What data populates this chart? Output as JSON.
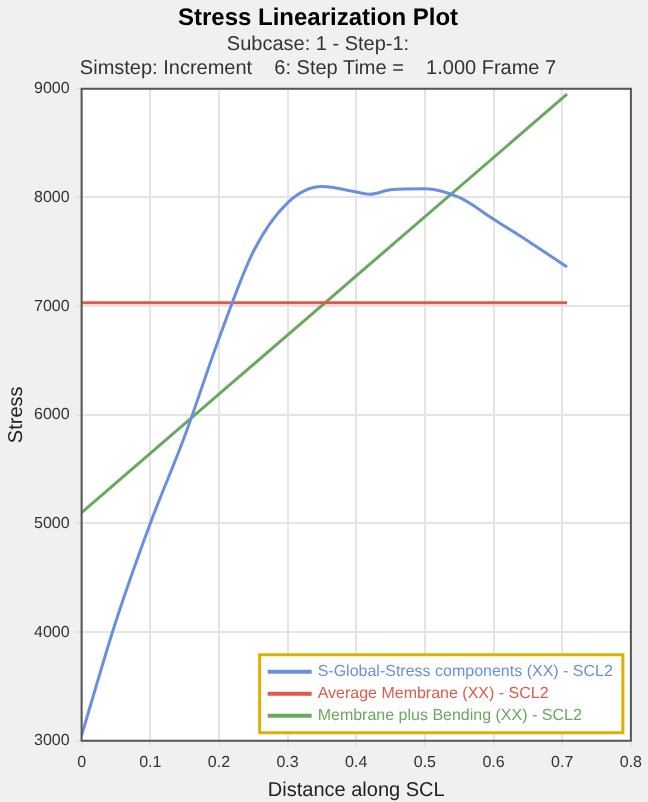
{
  "chart_data": {
    "type": "line",
    "title": "Stress Linearization Plot",
    "subtitle": "Subcase: 1 - Step-1:\nSimstep: Increment    6: Step Time =    1.000 Frame 7",
    "xlabel": "Distance along SCL",
    "ylabel": "Stress",
    "xlim": [
      0,
      0.8
    ],
    "xticks": [
      0,
      0.1,
      0.2,
      0.3,
      0.4,
      0.5,
      0.6,
      0.7,
      0.8
    ],
    "ylim": [
      3000,
      9000
    ],
    "yticks": [
      3000,
      4000,
      5000,
      6000,
      7000,
      8000,
      9000
    ],
    "grid": true,
    "legend": "bottom right",
    "marker": "none",
    "line_style": "solid",
    "series": [
      {
        "name": "S-Global-Stress components (XX) - SCL2",
        "color": "#6a8fe0",
        "x": [
          0,
          0.05,
          0.1,
          0.15,
          0.2,
          0.25,
          0.3,
          0.35,
          0.4,
          0.42,
          0.45,
          0.5,
          0.55,
          0.6,
          0.65,
          0.707
        ],
        "values": [
          3050,
          4100,
          5000,
          5800,
          6700,
          7500,
          7950,
          8100,
          8050,
          8030,
          8070,
          8080,
          8000,
          7800,
          7600,
          7360
        ]
      },
      {
        "name": "Average Membrane (XX) - SCL2",
        "color": "#e05a4a",
        "x": [
          0,
          0.707
        ],
        "values": [
          7030,
          7030
        ]
      },
      {
        "name": "Membrane plus Bending (XX) - SCL2",
        "color": "#6aa860",
        "x": [
          0,
          0.707
        ],
        "values": [
          5100,
          8950
        ]
      }
    ]
  }
}
